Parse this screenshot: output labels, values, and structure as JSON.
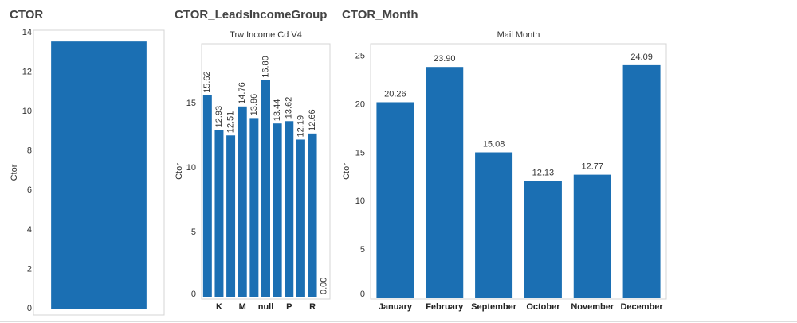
{
  "chart_data": [
    {
      "type": "bar",
      "title": "CTOR",
      "ylabel": "Ctor",
      "categories": [
        null
      ],
      "values": [
        13.55
      ],
      "color": "#1b6fb3",
      "ylim": [
        0,
        14
      ],
      "yticks": [
        0,
        2,
        4,
        6,
        8,
        10,
        12,
        14
      ],
      "grid": false
    },
    {
      "type": "bar",
      "title": "CTOR_LeadsIncomeGroup",
      "xlabel": "Trw Income Cd V4",
      "ylabel": "Ctor",
      "categories": [
        null,
        "K",
        null,
        "M",
        null,
        "null",
        null,
        "P",
        null,
        "R",
        null
      ],
      "values": [
        15.62,
        12.93,
        12.51,
        14.76,
        13.86,
        16.8,
        13.44,
        13.62,
        12.19,
        12.66,
        0
      ],
      "value_labels": [
        "15.62",
        "12.93",
        "12.51",
        "14.76",
        "13.86",
        "16.80",
        "13.44",
        "13.62",
        "12.19",
        "12.66",
        "0.00"
      ],
      "color": "#1b6fb3",
      "ylim": [
        0,
        19.5
      ],
      "yticks": [
        0,
        5,
        10,
        15
      ],
      "grid": false
    },
    {
      "type": "bar",
      "title": "CTOR_Month",
      "xlabel": "Mail Month",
      "ylabel": "Ctor",
      "categories": [
        "January",
        "February",
        "September",
        "October",
        "November",
        "December"
      ],
      "values": [
        20.26,
        23.9,
        15.08,
        12.13,
        12.77,
        24.09
      ],
      "value_labels": [
        "20.26",
        "23.90",
        "15.08",
        "12.13",
        "12.77",
        "24.09"
      ],
      "color": "#1b6fb3",
      "ylim": [
        0,
        26.3
      ],
      "yticks": [
        0,
        5,
        10,
        15,
        20,
        25
      ],
      "grid": false
    }
  ]
}
